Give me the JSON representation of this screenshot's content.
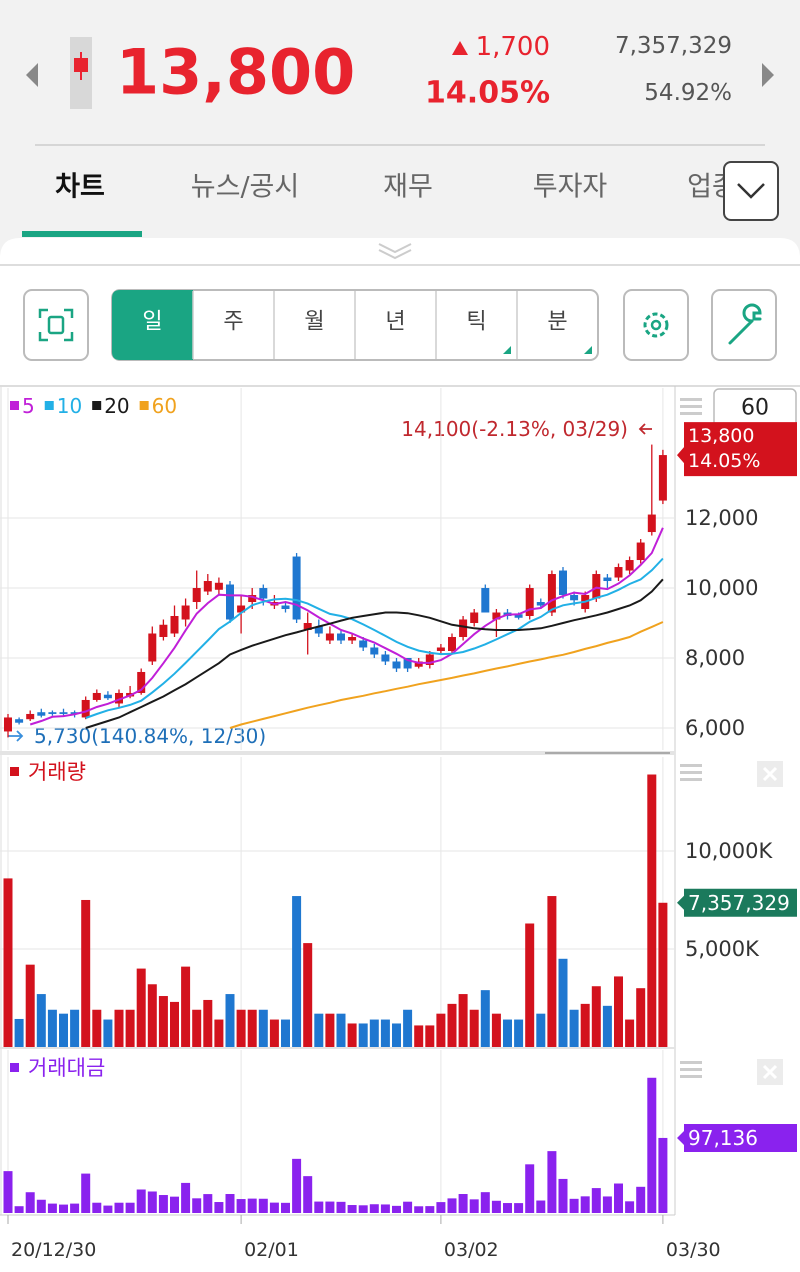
{
  "header": {
    "price": "13,800",
    "change": "1,700",
    "change_rate": "14.05%",
    "volume": "7,357,329",
    "turnover_rate": "54.92%"
  },
  "tabs": [
    "차트",
    "뉴스/공시",
    "재무",
    "투자자",
    "업종"
  ],
  "periods": [
    "일",
    "주",
    "월",
    "년",
    "틱",
    "분"
  ],
  "chart_zoom": 60,
  "chart_data": [
    {
      "type": "candlestick",
      "up_color": "#d3121d",
      "down_color": "#1f77d0",
      "high_label": "14,100(-2.13%, 03/29)",
      "low_label": "5,730(140.84%, 12/30)",
      "last_price_label": "13,800",
      "last_change_label": "14.05%",
      "ylim": [
        5370,
        15660
      ],
      "yticks": [
        {
          "value": 6000,
          "label": "6,000"
        },
        {
          "value": 8000,
          "label": "8,000"
        },
        {
          "value": 10000,
          "label": "10,000"
        },
        {
          "value": 12000,
          "label": "12,000"
        }
      ],
      "grid": true,
      "open": [
        5900,
        6250,
        6250,
        6450,
        6450,
        6450,
        6450,
        6300,
        6800,
        6950,
        6700,
        6900,
        7000,
        7900,
        8600,
        8700,
        9100,
        9600,
        9900,
        9950,
        10100,
        9300,
        9600,
        10000,
        9500,
        9500,
        10900,
        8800,
        8900,
        8500,
        8700,
        8500,
        8500,
        8300,
        8100,
        7900,
        8000,
        7750,
        7800,
        8200,
        8200,
        8600,
        9000,
        10000,
        9100,
        9300,
        9250,
        9200,
        9600,
        9300,
        10500,
        9800,
        9400,
        9700,
        10300,
        10300,
        10500,
        10800,
        11600,
        12500
      ],
      "close": [
        6300,
        6150,
        6400,
        6350,
        6400,
        6400,
        6400,
        6800,
        7000,
        6850,
        7000,
        7000,
        7600,
        8700,
        8950,
        9200,
        9500,
        10000,
        10200,
        10150,
        9100,
        9500,
        9800,
        9700,
        9600,
        9400,
        9100,
        9000,
        8700,
        8700,
        8500,
        8600,
        8300,
        8100,
        7900,
        7700,
        7700,
        7900,
        8100,
        8300,
        8600,
        9100,
        9300,
        9300,
        9300,
        9200,
        9150,
        10000,
        9500,
        10400,
        9800,
        9650,
        9800,
        10400,
        10200,
        10600,
        10800,
        11300,
        12100,
        13800
      ],
      "high": [
        6400,
        6300,
        6500,
        6550,
        6500,
        6550,
        6500,
        6900,
        7100,
        7050,
        7100,
        7200,
        7700,
        8900,
        9100,
        9500,
        9700,
        10500,
        10400,
        10300,
        10200,
        9800,
        10000,
        10100,
        9800,
        9600,
        11000,
        9300,
        9100,
        8900,
        8800,
        8700,
        8600,
        8400,
        8200,
        8000,
        8000,
        8000,
        8200,
        8400,
        8700,
        9200,
        9400,
        10100,
        9400,
        9400,
        9300,
        10100,
        9700,
        10500,
        10600,
        9900,
        9900,
        10500,
        10400,
        10700,
        10900,
        11400,
        14100,
        13950
      ],
      "low": [
        5730,
        6100,
        6200,
        6300,
        6350,
        6350,
        6300,
        6250,
        6750,
        6800,
        6600,
        6850,
        6950,
        7800,
        8500,
        8600,
        8900,
        9400,
        9800,
        9800,
        9000,
        8700,
        9400,
        9500,
        9400,
        9300,
        9000,
        8100,
        8600,
        8400,
        8400,
        8400,
        8200,
        8000,
        7800,
        7600,
        7600,
        7700,
        7700,
        8100,
        8100,
        8500,
        8900,
        9300,
        8600,
        9100,
        9100,
        9100,
        9400,
        9200,
        9700,
        9500,
        9300,
        9600,
        10000,
        10200,
        10400,
        10700,
        11500,
        12400
      ],
      "series": [
        {
          "name": "5",
          "color": "#c01fd8",
          "values": [
            null,
            null,
            6100,
            6200,
            6320,
            6340,
            6390,
            6470,
            6600,
            6690,
            6810,
            6930,
            7090,
            7430,
            7850,
            8290,
            8790,
            9270,
            9570,
            9810,
            9790,
            9790,
            9750,
            9650,
            9540,
            9600,
            9520,
            9360,
            9160,
            8980,
            8800,
            8700,
            8560,
            8440,
            8280,
            8120,
            7940,
            7860,
            7860,
            7940,
            8120,
            8400,
            8680,
            8920,
            9120,
            9240,
            9250,
            9390,
            9430,
            9650,
            9770,
            9870,
            9830,
            10010,
            9970,
            10130,
            10360,
            10660,
            11000,
            11720
          ]
        },
        {
          "name": "10",
          "color": "#22b0e6",
          "values": [
            null,
            null,
            null,
            null,
            null,
            null,
            null,
            6285,
            6400,
            6505,
            6575,
            6660,
            6780,
            7015,
            7270,
            7550,
            7860,
            8180,
            8500,
            8830,
            9040,
            9290,
            9510,
            9610,
            9675,
            9695,
            9655,
            9555,
            9405,
            9260,
            9200,
            9110,
            8960,
            8800,
            8630,
            8460,
            8320,
            8210,
            8150,
            8110,
            8120,
            8170,
            8270,
            8390,
            8530,
            8680,
            8825,
            9035,
            9175,
            9385,
            9505,
            9560,
            9610,
            9720,
            9810,
            9950,
            10115,
            10245,
            10505,
            10845
          ]
        },
        {
          "name": "20",
          "color": "#1a1a1a",
          "values": [
            null,
            null,
            null,
            null,
            null,
            null,
            null,
            6000,
            6100,
            6200,
            6300,
            6450,
            6600,
            6750,
            6900,
            7080,
            7250,
            7450,
            7650,
            7850,
            8100,
            8230,
            8350,
            8450,
            8550,
            8650,
            8730,
            8820,
            8900,
            8980,
            9070,
            9150,
            9200,
            9250,
            9300,
            9300,
            9280,
            9220,
            9150,
            9050,
            8950,
            8900,
            8850,
            8820,
            8800,
            8800,
            8800,
            8820,
            8850,
            8920,
            9000,
            9080,
            9150,
            9220,
            9300,
            9400,
            9500,
            9650,
            9900,
            10250
          ]
        },
        {
          "name": "60",
          "color": "#f0a21e",
          "values": [
            null,
            null,
            null,
            null,
            null,
            null,
            null,
            null,
            null,
            null,
            null,
            null,
            null,
            null,
            null,
            null,
            null,
            null,
            null,
            null,
            6000,
            6100,
            6180,
            6260,
            6340,
            6420,
            6500,
            6580,
            6650,
            6720,
            6800,
            6860,
            6920,
            6990,
            7050,
            7120,
            7180,
            7250,
            7310,
            7370,
            7430,
            7500,
            7560,
            7630,
            7700,
            7760,
            7830,
            7900,
            7960,
            8030,
            8090,
            8170,
            8260,
            8340,
            8430,
            8510,
            8600,
            8750,
            8890,
            9030
          ]
        }
      ]
    },
    {
      "type": "bar",
      "title": "거래량",
      "up_color": "#d3121d",
      "down_color": "#1f77d0",
      "tag_color": "#1b7a5c",
      "last_value_label": "7,357,329",
      "ylim": [
        0,
        14640000
      ],
      "yticks": [
        {
          "value": 5000000,
          "label": "5,000K"
        },
        {
          "value": 10000000,
          "label": "10,000K"
        }
      ],
      "grid": true,
      "values": [
        8600000,
        1430000,
        4200000,
        2700000,
        1900000,
        1700000,
        1900000,
        7500000,
        1900000,
        1400000,
        1900000,
        1900000,
        4000000,
        3200000,
        2600000,
        2300000,
        4100000,
        1900000,
        2400000,
        1400000,
        2700000,
        1900000,
        1900000,
        1900000,
        1400000,
        1400000,
        7700000,
        5300000,
        1700000,
        1700000,
        1700000,
        1200000,
        1200000,
        1400000,
        1400000,
        1200000,
        1900000,
        1100000,
        1100000,
        1700000,
        2200000,
        2700000,
        1900000,
        2900000,
        1700000,
        1400000,
        1400000,
        6300000,
        1700000,
        7700000,
        4500000,
        1900000,
        2200000,
        3100000,
        2100000,
        3600000,
        1400000,
        3000000,
        13900000,
        7357329
      ]
    },
    {
      "type": "bar",
      "title": "거래대금",
      "color": "#8a22ee",
      "last_value_label": "97,136",
      "ylim": [
        0,
        198000
      ],
      "categories": [
        "20/12/30",
        null,
        null,
        null,
        null,
        null,
        null,
        null,
        null,
        null,
        null,
        null,
        null,
        null,
        null,
        null,
        null,
        null,
        null,
        null,
        null,
        "02/01",
        null,
        null,
        null,
        null,
        null,
        null,
        null,
        null,
        null,
        null,
        null,
        null,
        null,
        null,
        null,
        null,
        null,
        "03/02",
        null,
        null,
        null,
        null,
        null,
        null,
        null,
        null,
        null,
        null,
        null,
        null,
        null,
        null,
        null,
        null,
        null,
        null,
        null,
        "03/30"
      ],
      "values": [
        54180,
        8795,
        26880,
        17145,
        12160,
        10880,
        12160,
        51000,
        13300,
        9590,
        13300,
        13300,
        30400,
        27840,
        23270,
        21160,
        38950,
        19000,
        24480,
        14210,
        24570,
        18050,
        18620,
        18430,
        13440,
        13160,
        70070,
        47700,
        14790,
        14790,
        14450,
        10320,
        9960,
        11340,
        11060,
        9240,
        14630,
        8690,
        8910,
        14110,
        18920,
        24570,
        17670,
        26970,
        15810,
        12880,
        12810,
        63000,
        16150,
        80080,
        44100,
        18340,
        21560,
        32240,
        21420,
        38160,
        15120,
        33900,
        175000,
        97136
      ]
    }
  ]
}
